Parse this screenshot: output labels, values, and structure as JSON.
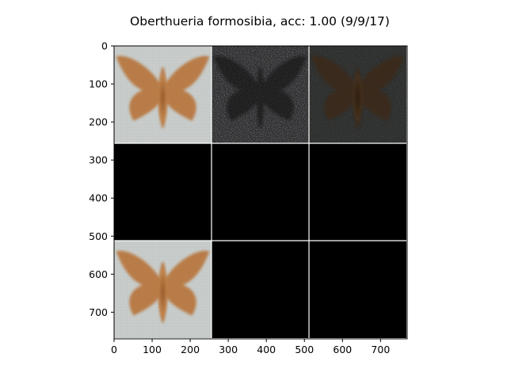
{
  "chart_data": {
    "type": "image-grid",
    "title": "Oberthueria formosibia, acc: 1.00 (9/9/17)",
    "xlim": [
      0,
      770
    ],
    "ylim": [
      770,
      0
    ],
    "xticks": [
      0,
      100,
      200,
      300,
      400,
      500,
      600,
      700
    ],
    "yticks": [
      0,
      100,
      200,
      300,
      400,
      500,
      600,
      700
    ],
    "grid_rows": 3,
    "grid_cols": 3,
    "tile_size": 256,
    "tiles": [
      {
        "row": 0,
        "col": 0,
        "content": "butterfly-photo",
        "description": "light background, orange-brown moth"
      },
      {
        "row": 0,
        "col": 1,
        "content": "noise-map",
        "description": "dark noisy saliency map"
      },
      {
        "row": 0,
        "col": 2,
        "content": "dark-butterfly",
        "description": "dim brown moth on dark background"
      },
      {
        "row": 1,
        "col": 0,
        "content": "black"
      },
      {
        "row": 1,
        "col": 1,
        "content": "black"
      },
      {
        "row": 1,
        "col": 2,
        "content": "black"
      },
      {
        "row": 2,
        "col": 0,
        "content": "butterfly-photo",
        "description": "light background, orange-brown moth"
      },
      {
        "row": 2,
        "col": 1,
        "content": "black"
      },
      {
        "row": 2,
        "col": 2,
        "content": "black"
      }
    ],
    "colors": {
      "tile_black": "#000000",
      "tile_light_bg": "#c8ccca",
      "moth_orange": "#b8763c",
      "moth_dark": "#3b2a1a",
      "noise_bg": "#2a2a2a",
      "separator": "#ffffff"
    }
  }
}
